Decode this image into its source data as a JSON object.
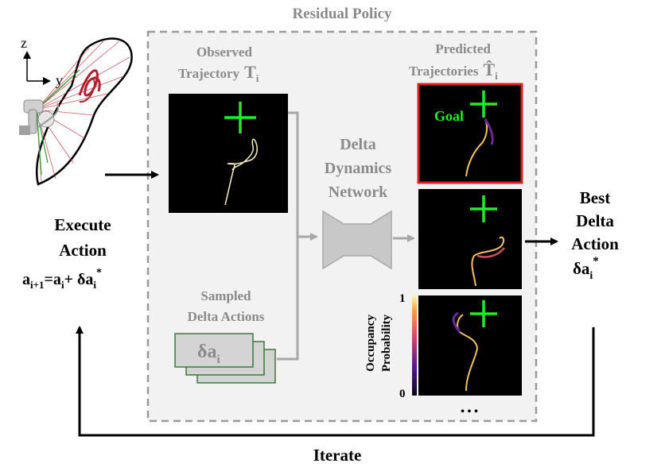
{
  "title": "Residual Policy",
  "axes": {
    "z": "z",
    "y": "y"
  },
  "execute": {
    "line1": "Execute",
    "line2": "Action",
    "formula_a": "a",
    "formula_sub1": "i+1",
    "formula_eq": "=a",
    "formula_sub2": "i",
    "formula_plus": "+ δa",
    "formula_sub3": "i",
    "formula_sup": "*"
  },
  "observed": {
    "line1": "Observed",
    "line2": "Trajectory",
    "symbol": "T",
    "sub": "i"
  },
  "predicted": {
    "line1": "Predicted",
    "line2": "Trajectories",
    "symbol": "T̂",
    "sub": "i",
    "goal_label": "Goal"
  },
  "network": {
    "line1": "Delta",
    "line2": "Dynamics",
    "line3": "Network"
  },
  "sampled": {
    "line1": "Sampled",
    "line2": "Delta Actions",
    "card_label": "δa",
    "card_sub": "i"
  },
  "best": {
    "line1": "Best",
    "line2": "Delta",
    "line3": "Action",
    "symbol": "δa",
    "sub": "i",
    "sup": "*"
  },
  "colorbar": {
    "label1": "Occupancy",
    "label2": "Probability",
    "max": "1",
    "min": "0"
  },
  "ellipsis": "• • •",
  "iterate": "Iterate",
  "colors": {
    "goal_green": "#22ee22",
    "border_red": "#e02020",
    "dash_gray": "#9a9a9a",
    "card_green": "#3a7a3a",
    "box_fill": "#f2f2f2",
    "text_gray": "#8a8a8a"
  }
}
